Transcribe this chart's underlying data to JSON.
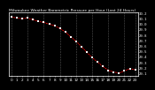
{
  "title": "Milwaukee Weather Barometric Pressure per Hour (Last 24 Hours)",
  "bg_color": "#000000",
  "plot_bg": "#000000",
  "grid_color": "#555555",
  "line_color": "#ff0000",
  "marker_color": "#000000",
  "text_color": "#ffffff",
  "border_color": "#ffffff",
  "hours": [
    0,
    1,
    2,
    3,
    4,
    5,
    6,
    7,
    8,
    9,
    10,
    11,
    12,
    13,
    14,
    15,
    16,
    17,
    18,
    19,
    20,
    21,
    22,
    23
  ],
  "pressure": [
    30.12,
    30.1,
    30.09,
    30.1,
    30.07,
    30.04,
    30.02,
    29.99,
    29.96,
    29.91,
    29.85,
    29.76,
    29.68,
    29.58,
    29.48,
    29.38,
    29.3,
    29.22,
    29.15,
    29.12,
    29.1,
    29.14,
    29.18,
    29.16
  ],
  "ylim_min": 29.05,
  "ylim_max": 30.2,
  "ytick_values": [
    29.1,
    29.2,
    29.3,
    29.4,
    29.5,
    29.6,
    29.7,
    29.8,
    29.9,
    30.0,
    30.1,
    30.2
  ],
  "xtick_labels": [
    "0",
    "1",
    "2",
    "3",
    "4",
    "5",
    "6",
    "7",
    "8",
    "9",
    "10",
    "11",
    "12",
    "13",
    "14",
    "15",
    "16",
    "17",
    "18",
    "19",
    "20",
    "21",
    "22",
    "23"
  ],
  "tick_fontsize": 3.0,
  "ytick_fontsize": 2.8,
  "title_fontsize": 3.2,
  "vline_positions": [
    0,
    3,
    6,
    9,
    12,
    15,
    18,
    21,
    23
  ]
}
